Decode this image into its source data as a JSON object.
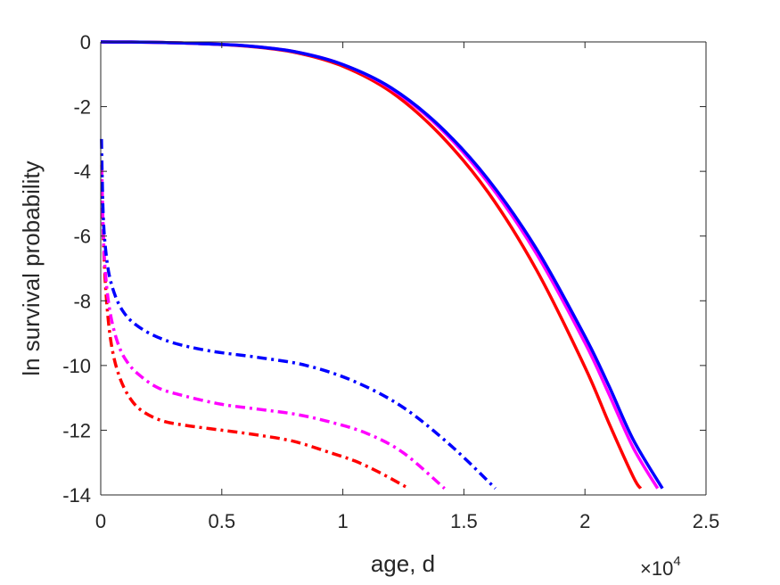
{
  "chart_data": {
    "type": "line",
    "xlabel": "age, d",
    "ylabel": "ln survival probability",
    "x_multiplier_label": "×10",
    "x_multiplier_exponent": "4",
    "xlim": [
      0,
      25000
    ],
    "ylim": [
      -14,
      0
    ],
    "xticks": [
      0,
      5000,
      10000,
      15000,
      20000,
      25000
    ],
    "xtick_labels": [
      "0",
      "0.5",
      "1",
      "1.5",
      "2",
      "2.5"
    ],
    "yticks": [
      0,
      -2,
      -4,
      -6,
      -8,
      -10,
      -12,
      -14
    ],
    "ytick_labels": [
      "0",
      "-2",
      "-4",
      "-6",
      "-8",
      "-10",
      "-12",
      "-14"
    ],
    "grid": false,
    "legend": false,
    "series": [
      {
        "color": "#ff0000",
        "style": "solid",
        "x": [
          0,
          2000,
          4000,
          6000,
          8000,
          10000,
          12000,
          14000,
          16000,
          18000,
          20000,
          21000,
          22000,
          22300
        ],
        "y": [
          0,
          -0.01,
          -0.05,
          -0.13,
          -0.32,
          -0.75,
          -1.55,
          -2.85,
          -4.65,
          -7.05,
          -10.05,
          -11.8,
          -13.45,
          -13.8
        ]
      },
      {
        "color": "#ff00ff",
        "style": "solid",
        "x": [
          0,
          2000,
          4000,
          6000,
          8000,
          10000,
          12000,
          14000,
          16000,
          18000,
          20000,
          21000,
          22000,
          23000
        ],
        "y": [
          0,
          -0.01,
          -0.05,
          -0.12,
          -0.3,
          -0.7,
          -1.45,
          -2.65,
          -4.35,
          -6.55,
          -9.3,
          -10.9,
          -12.55,
          -13.8
        ]
      },
      {
        "color": "#0000ff",
        "style": "solid",
        "x": [
          0,
          2000,
          4000,
          6000,
          8000,
          10000,
          12000,
          14000,
          16000,
          18000,
          20000,
          21000,
          22000,
          23200
        ],
        "y": [
          0,
          -0.01,
          -0.05,
          -0.12,
          -0.3,
          -0.7,
          -1.42,
          -2.6,
          -4.25,
          -6.4,
          -9.1,
          -10.65,
          -12.3,
          -13.8
        ]
      },
      {
        "color": "#ff0000",
        "style": "dashdot",
        "x": [
          50,
          150,
          300,
          500,
          800,
          1200,
          1700,
          2500,
          3500,
          5000,
          6500,
          8000,
          9500,
          10500,
          11500,
          12600
        ],
        "y": [
          -4.5,
          -6.9,
          -8.5,
          -9.6,
          -10.4,
          -11.0,
          -11.4,
          -11.7,
          -11.85,
          -12.0,
          -12.15,
          -12.35,
          -12.7,
          -12.95,
          -13.3,
          -13.75
        ]
      },
      {
        "color": "#ff00ff",
        "style": "dashdot",
        "x": [
          40,
          120,
          250,
          450,
          750,
          1100,
          1600,
          2400,
          3500,
          5000,
          6500,
          8000,
          9500,
          11000,
          12500,
          14200
        ],
        "y": [
          -3.8,
          -6.2,
          -7.6,
          -8.6,
          -9.4,
          -9.9,
          -10.3,
          -10.7,
          -10.95,
          -11.2,
          -11.35,
          -11.5,
          -11.75,
          -12.1,
          -12.7,
          -13.8
        ]
      },
      {
        "color": "#0000ff",
        "style": "dashdot",
        "x": [
          30,
          100,
          200,
          350,
          600,
          900,
          1300,
          2000,
          3000,
          4500,
          6500,
          8500,
          10500,
          12500,
          14500,
          16300
        ],
        "y": [
          -3.0,
          -5.3,
          -6.4,
          -7.2,
          -7.85,
          -8.3,
          -8.65,
          -9.0,
          -9.3,
          -9.55,
          -9.75,
          -10.0,
          -10.5,
          -11.3,
          -12.5,
          -13.8
        ]
      }
    ]
  }
}
